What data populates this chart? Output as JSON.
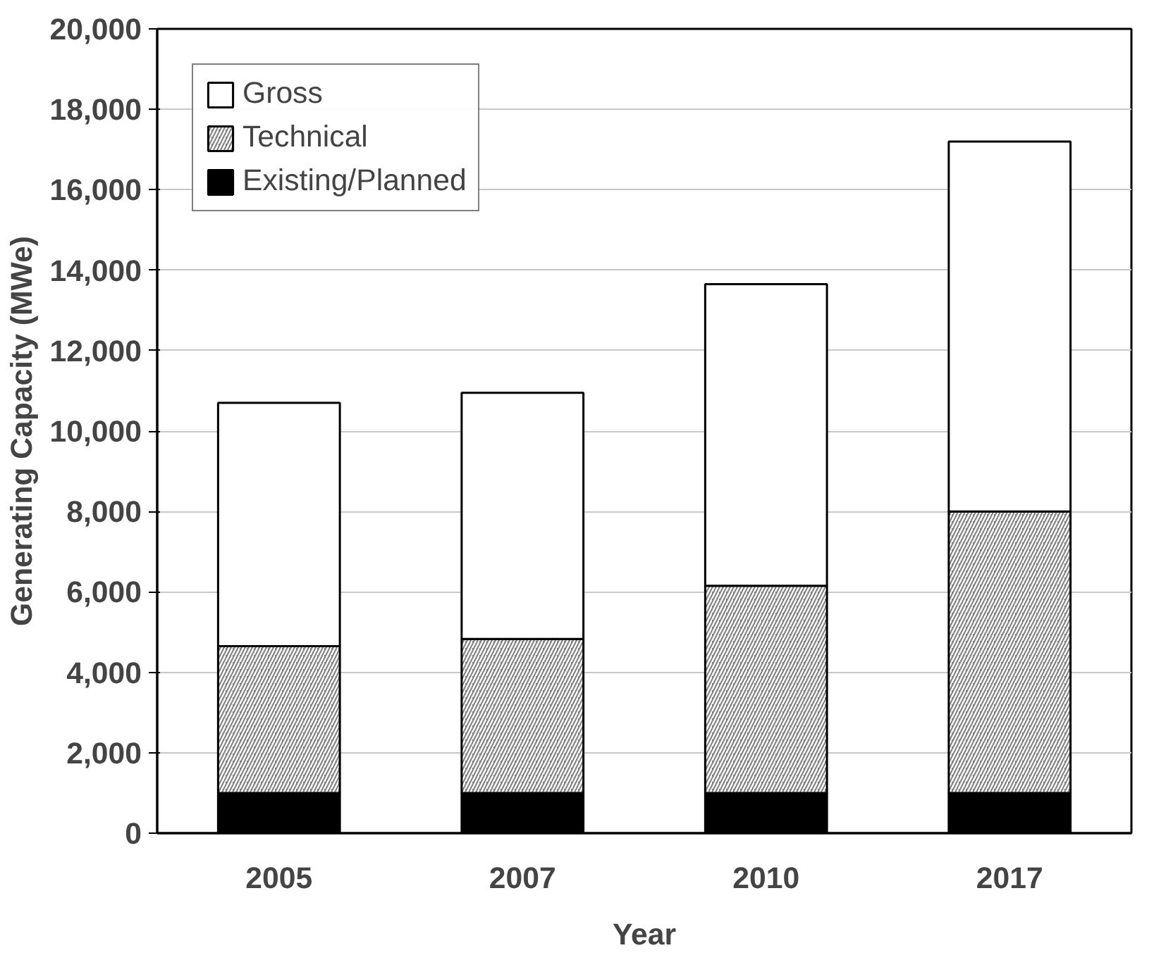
{
  "chart_data": {
    "type": "bar",
    "stacked": true,
    "xlabel": "Year",
    "ylabel": "Generating Capacity (MWe)",
    "categories": [
      "2005",
      "2007",
      "2010",
      "2017"
    ],
    "series": [
      {
        "name": "Existing/Planned",
        "color": "#000000",
        "values": [
          1000,
          1000,
          1000,
          1000
        ]
      },
      {
        "name": "Technical",
        "color": "#808080",
        "values": [
          3650,
          3830,
          5150,
          7000
        ]
      },
      {
        "name": "Gross",
        "color": "#ffffff",
        "values": [
          6050,
          6120,
          7500,
          9200
        ]
      }
    ],
    "ylim": [
      0,
      20000
    ],
    "yticks": [
      {
        "value": 0,
        "label": "0"
      },
      {
        "value": 2000,
        "label": "2,000"
      },
      {
        "value": 4000,
        "label": "4,000"
      },
      {
        "value": 6000,
        "label": "6,000"
      },
      {
        "value": 8000,
        "label": "8,000"
      },
      {
        "value": 10000,
        "label": "10,000"
      },
      {
        "value": 12000,
        "label": "12,000"
      },
      {
        "value": 14000,
        "label": "14,000"
      },
      {
        "value": 16000,
        "label": "16,000"
      },
      {
        "value": 18000,
        "label": "18,000"
      },
      {
        "value": 20000,
        "label": "20,000"
      }
    ],
    "grid": "y",
    "legend": "top left"
  }
}
